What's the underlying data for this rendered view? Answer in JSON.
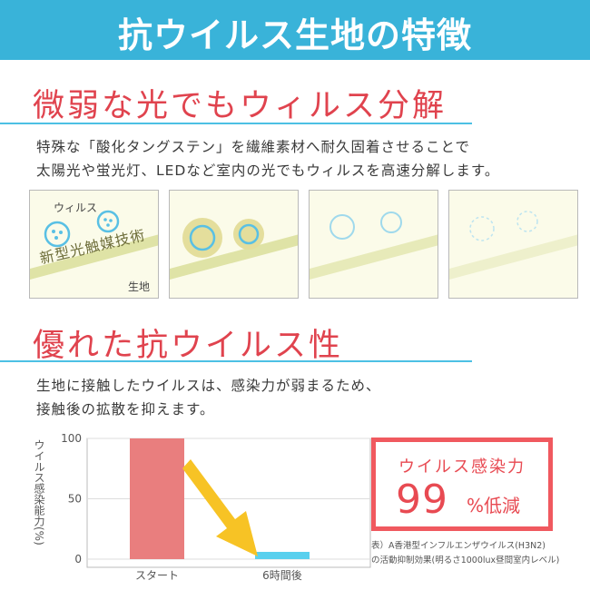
{
  "banner": {
    "title": "抗ウイルス生地の特徴"
  },
  "section1": {
    "title": "微弱な光でもウィルス分解",
    "desc_line1": "特殊な「酸化タングステン」を繊維素材へ耐久固着させることで",
    "desc_line2": "太陽光や蛍光灯、LEDなど室内の光でもウィルスを高速分解します。"
  },
  "panels": {
    "virus_label": "ウィルス",
    "technology_label": "新型光触媒技術",
    "fabric_label": "生地"
  },
  "section2": {
    "title": "優れた抗ウイルス性",
    "desc_line1": "生地に接触したウイルスは、感染力が弱まるため、",
    "desc_line2": "接触後の拡散を抑えます。"
  },
  "chart_data": {
    "type": "bar",
    "categories": [
      "スタート",
      "6時間後"
    ],
    "values": [
      100,
      1
    ],
    "ylabel": "ウイルス感染能力(%)",
    "ylim": [
      0,
      100
    ],
    "yticks": [
      "100",
      "50",
      "0"
    ],
    "grid": true,
    "colors": [
      "#e97e7e",
      "#59d0ee"
    ],
    "annotation": "arrow from Start bar to 6-hour bar"
  },
  "result": {
    "title": "ウイルス感染力",
    "value": "99",
    "unit": "%低減"
  },
  "note": {
    "line1": "表）A香港型インフルエンザウイルス(H3N2)",
    "line2": "の活動抑制効果(明るさ1000lux昼間室内レベル)"
  },
  "colors": {
    "accent_blue": "#39b3d9",
    "accent_red": "#e0434e",
    "bar_start": "#e97e7e",
    "bar_after": "#59d0ee"
  }
}
